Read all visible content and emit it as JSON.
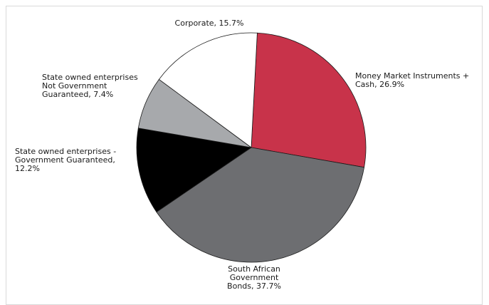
{
  "chart_data": {
    "type": "pie",
    "title": "",
    "start_angle_deg": 87,
    "direction": "clockwise",
    "slices": [
      {
        "label_lines": [
          "Money Market Instruments +",
          "Cash, 26.9%"
        ],
        "name": "Money Market Instruments + Cash",
        "value": 26.9,
        "color": "#c8334a"
      },
      {
        "label_lines": [
          "South African",
          "Government",
          "Bonds, 37.7%"
        ],
        "name": "South African Government Bonds",
        "value": 37.7,
        "color": "#6d6e71"
      },
      {
        "label_lines": [
          "State owned enterprises  -",
          "Government Guaranteed,",
          "12.2%"
        ],
        "name": "State owned enterprises - Government Guaranteed",
        "value": 12.2,
        "color": "#000000"
      },
      {
        "label_lines": [
          "State owned enterprises",
          "Not Government",
          "Guaranteed, 7.4%"
        ],
        "name": "State owned enterprises Not Government Guaranteed",
        "value": 7.4,
        "color": "#a7a9ac"
      },
      {
        "label_lines": [
          "Corporate, 15.7%"
        ],
        "name": "Corporate",
        "value": 15.7,
        "color": "#ffffff"
      }
    ]
  }
}
